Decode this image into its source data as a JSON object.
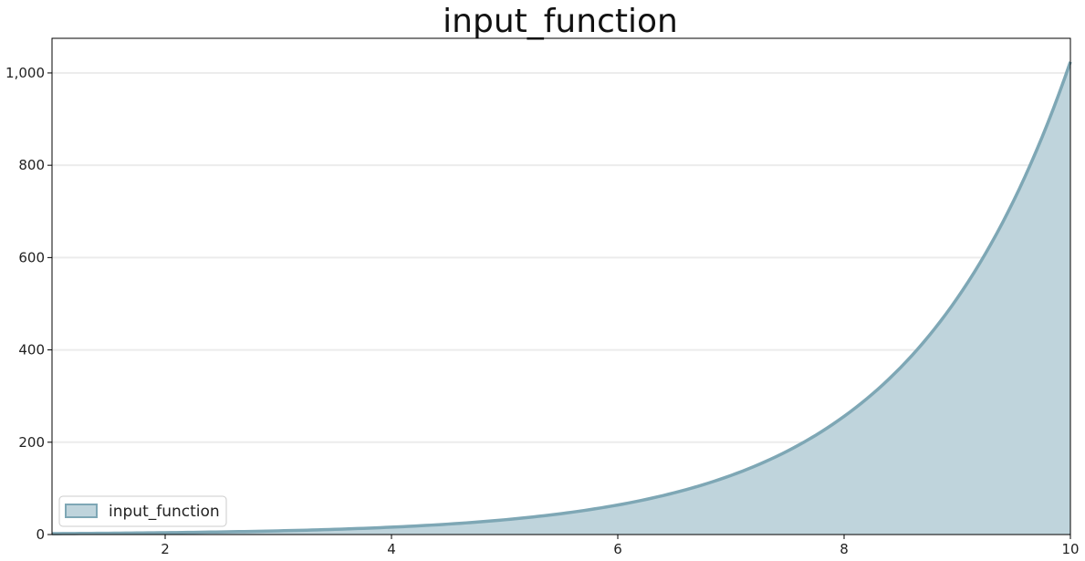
{
  "chart_data": {
    "type": "area",
    "title": "input_function",
    "xlabel": "",
    "ylabel": "",
    "xlim": [
      1,
      10
    ],
    "ylim": [
      0,
      1075
    ],
    "x_ticks": [
      2,
      4,
      6,
      8,
      10
    ],
    "x_tick_labels": [
      "2",
      "4",
      "6",
      "8",
      "10"
    ],
    "y_ticks": [
      0,
      200,
      400,
      600,
      800,
      1000
    ],
    "y_tick_labels": [
      "0",
      "200",
      "400",
      "600",
      "800",
      "1,000"
    ],
    "grid": "horizontal",
    "legend_position": "bottom-left",
    "series": [
      {
        "name": "input_function",
        "fill_color": "#bfd4dc",
        "line_color": "#7ea7b5",
        "x": [
          1,
          1.5,
          2,
          2.5,
          3,
          3.5,
          4,
          4.5,
          5,
          5.5,
          6,
          6.5,
          7,
          7.5,
          8,
          8.5,
          9,
          9.5,
          10
        ],
        "y": [
          2,
          2.8,
          4,
          5.7,
          8,
          11.3,
          16,
          22.6,
          32,
          45.3,
          64,
          90.5,
          128,
          181,
          256,
          362,
          512,
          724,
          1024
        ]
      }
    ]
  }
}
